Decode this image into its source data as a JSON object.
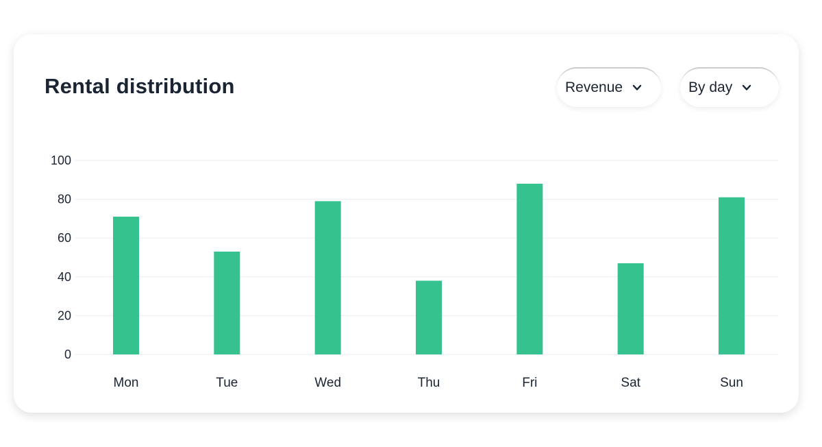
{
  "header": {
    "title": "Rental distribution"
  },
  "controls": {
    "metric": {
      "label": "Revenue",
      "icon": "chevron-down-icon"
    },
    "period": {
      "label": "By day",
      "icon": "chevron-down-icon"
    }
  },
  "colors": {
    "bar": "#36c28f",
    "grid": "#e9ebee",
    "text": "#1a2433"
  },
  "chart_data": {
    "type": "bar",
    "title": "Rental distribution",
    "xlabel": "",
    "ylabel": "",
    "categories": [
      "Mon",
      "Tue",
      "Wed",
      "Thu",
      "Fri",
      "Sat",
      "Sun"
    ],
    "values": [
      71,
      53,
      79,
      38,
      88,
      47,
      81
    ],
    "ylim": [
      0,
      100
    ],
    "yticks": [
      0,
      20,
      40,
      60,
      80,
      100
    ],
    "grid": true,
    "legend": "none"
  }
}
